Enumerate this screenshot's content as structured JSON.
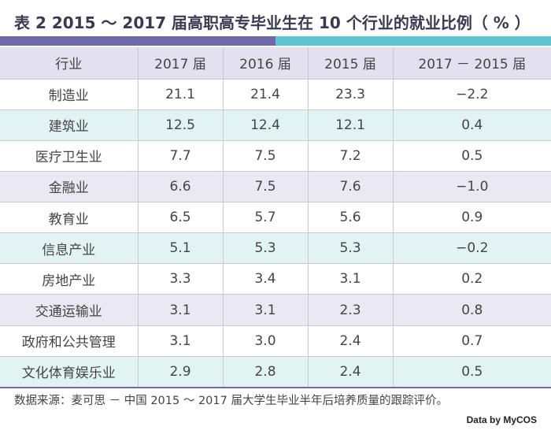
{
  "title": "表 2  2015 ～ 2017 届高职高专毕业生在 10 个行业的就业比例（ % ）",
  "table": {
    "headers": [
      "行业",
      "2017 届",
      "2016 届",
      "2015 届",
      "2017 － 2015 届"
    ],
    "rows": [
      [
        "制造业",
        "21.1",
        "21.4",
        "23.3",
        "−2.2"
      ],
      [
        "建筑业",
        "12.5",
        "12.4",
        "12.1",
        "0.4"
      ],
      [
        "医疗卫生业",
        "7.7",
        "7.5",
        "7.2",
        "0.5"
      ],
      [
        "金融业",
        "6.6",
        "7.5",
        "7.6",
        "−1.0"
      ],
      [
        "教育业",
        "6.5",
        "5.7",
        "5.6",
        "0.9"
      ],
      [
        "信息产业",
        "5.1",
        "5.3",
        "5.3",
        "−0.2"
      ],
      [
        "房地产业",
        "3.3",
        "3.4",
        "3.1",
        "0.2"
      ],
      [
        "交通运输业",
        "3.1",
        "3.1",
        "2.3",
        "0.8"
      ],
      [
        "政府和公共管理",
        "3.1",
        "3.0",
        "2.4",
        "0.7"
      ],
      [
        "文化体育娱乐业",
        "2.9",
        "2.8",
        "2.4",
        "0.5"
      ]
    ]
  },
  "source": "数据来源：麦可思 － 中国 2015 ～ 2017 届大学生毕业半年后培养质量的跟踪评价。",
  "brand": "Data by MyCOS",
  "colors": {
    "title_bar_left": "#6e6aa8",
    "title_bar_right": "#5fc4cf",
    "header_bg": "#e3e1ef",
    "row_teal": "#e2f3f4",
    "row_lavender": "#e9e8f3"
  }
}
